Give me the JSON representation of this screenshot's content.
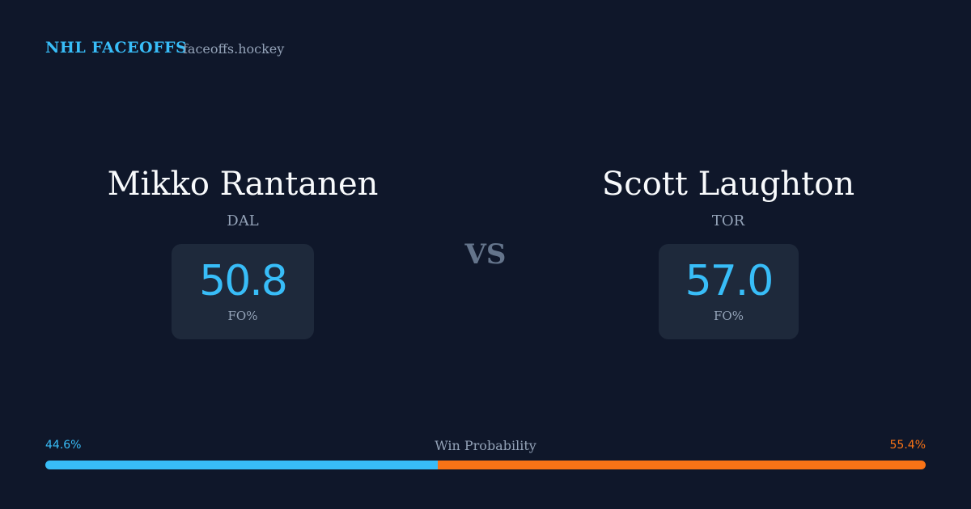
{
  "header": {
    "brand": "NHL FACEOFFS",
    "site": "faceoffs.hockey"
  },
  "players": [
    {
      "name": "Mikko Rantanen",
      "team": "DAL",
      "stat": "50.8",
      "stat_label": "FO%"
    },
    {
      "name": "Scott Laughton",
      "team": "TOR",
      "stat": "57.0",
      "stat_label": "FO%"
    }
  ],
  "vs": "VS",
  "win_probability": {
    "label": "Win Probability",
    "series": [
      {
        "color": "#38bdf8",
        "values": [
          44.6
        ],
        "value_labels": [
          "44.6%"
        ]
      },
      {
        "color": "#f97316",
        "values": [
          55.4
        ],
        "value_labels": [
          "55.4%"
        ]
      }
    ]
  }
}
